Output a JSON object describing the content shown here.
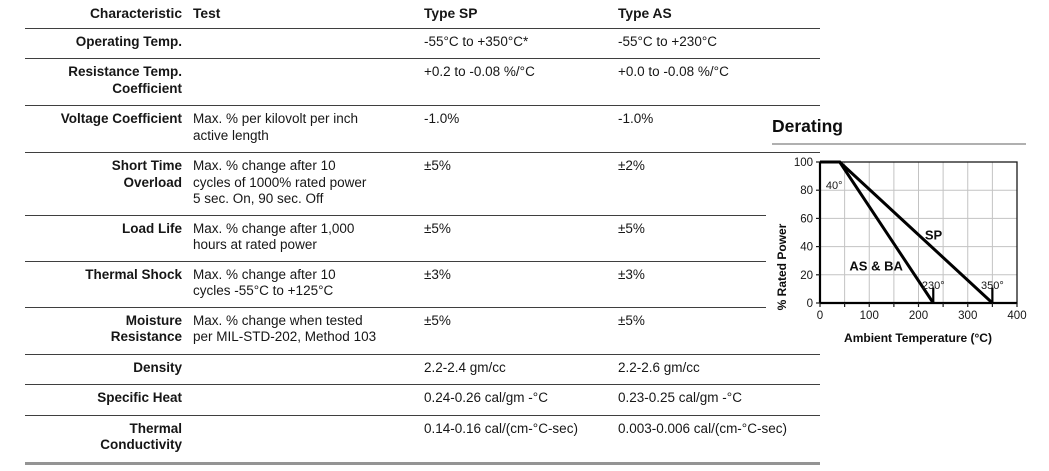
{
  "table": {
    "headers": {
      "characteristic": "Characteristic",
      "test": "Test",
      "type_sp": "Type SP",
      "type_as": "Type AS"
    },
    "rows": [
      {
        "label": "Operating Temp.",
        "test": "",
        "sp": "-55°C to +350°C*",
        "as": "-55°C to +230°C"
      },
      {
        "label": "Resistance Temp.\nCoefficient",
        "test": "",
        "sp": "+0.2 to -0.08 %/°C",
        "as": "+0.0 to -0.08 %/°C"
      },
      {
        "label": "Voltage Coefficient",
        "test": "Max. % per kilovolt per inch\nactive length",
        "sp": "-1.0%",
        "as": "-1.0%"
      },
      {
        "label": "Short Time\nOverload",
        "test": "Max. % change after 10\ncycles of 1000% rated power\n5 sec. On, 90 sec. Off",
        "sp": "±5%",
        "as": "±2%"
      },
      {
        "label": "Load Life",
        "test": "Max. % change after 1,000\nhours at rated power",
        "sp": "±5%",
        "as": "±5%"
      },
      {
        "label": "Thermal Shock",
        "test": "Max. % change after 10\ncycles -55°C to +125°C",
        "sp": "±3%",
        "as": "±3%"
      },
      {
        "label": "Moisture\nResistance",
        "test": "Max. % change when tested\nper MIL-STD-202, Method 103",
        "sp": "±5%",
        "as": "±5%"
      },
      {
        "label": "Density",
        "test": "",
        "sp": "2.2-2.4 gm/cc",
        "as": "2.2-2.6 gm/cc"
      },
      {
        "label": "Specific Heat",
        "test": "",
        "sp": "0.24-0.26 cal/gm -°C",
        "as": "0.23-0.25 cal/gm -°C"
      },
      {
        "label": "Thermal\nConductivity",
        "test": "",
        "sp": "0.14-0.16 cal/(cm-°C-sec)",
        "as": "0.003-0.006 cal/(cm-°C-sec)"
      }
    ]
  },
  "derating": {
    "title": "Derating"
  },
  "chart_data": {
    "type": "line",
    "title": "Derating",
    "xlabel": "Ambient Temperature (°C)",
    "ylabel": "% Rated Power",
    "xlim": [
      0,
      400
    ],
    "ylim": [
      0,
      100
    ],
    "x_ticks": [
      0,
      100,
      200,
      300,
      400
    ],
    "y_ticks": [
      0,
      20,
      40,
      60,
      80,
      100
    ],
    "x_gridlines": [
      0,
      50,
      100,
      150,
      200,
      250,
      300,
      350,
      400
    ],
    "y_gridlines": [
      0,
      20,
      40,
      60,
      80,
      100
    ],
    "grid": "on",
    "legend_position": "inline-labels",
    "series": [
      {
        "name": "SP",
        "points": [
          [
            0,
            100
          ],
          [
            40,
            100
          ],
          [
            350,
            0
          ]
        ],
        "label_pos": {
          "x": 213,
          "y": 45,
          "anchor": "start"
        }
      },
      {
        "name": "AS & BA",
        "points": [
          [
            0,
            100
          ],
          [
            40,
            100
          ],
          [
            230,
            0
          ]
        ],
        "label_pos": {
          "x": 114,
          "y": 23,
          "anchor": "middle"
        }
      }
    ],
    "end_markers": [
      {
        "x": 230,
        "top": 11
      },
      {
        "x": 350,
        "top": 11
      }
    ],
    "point_labels": [
      {
        "text": "40°",
        "x": 12,
        "y": 81,
        "anchor": "start"
      },
      {
        "text": "230°",
        "x": 230,
        "y": 10,
        "anchor": "middle"
      },
      {
        "text": "350°",
        "x": 350,
        "y": 10,
        "anchor": "middle"
      }
    ]
  }
}
